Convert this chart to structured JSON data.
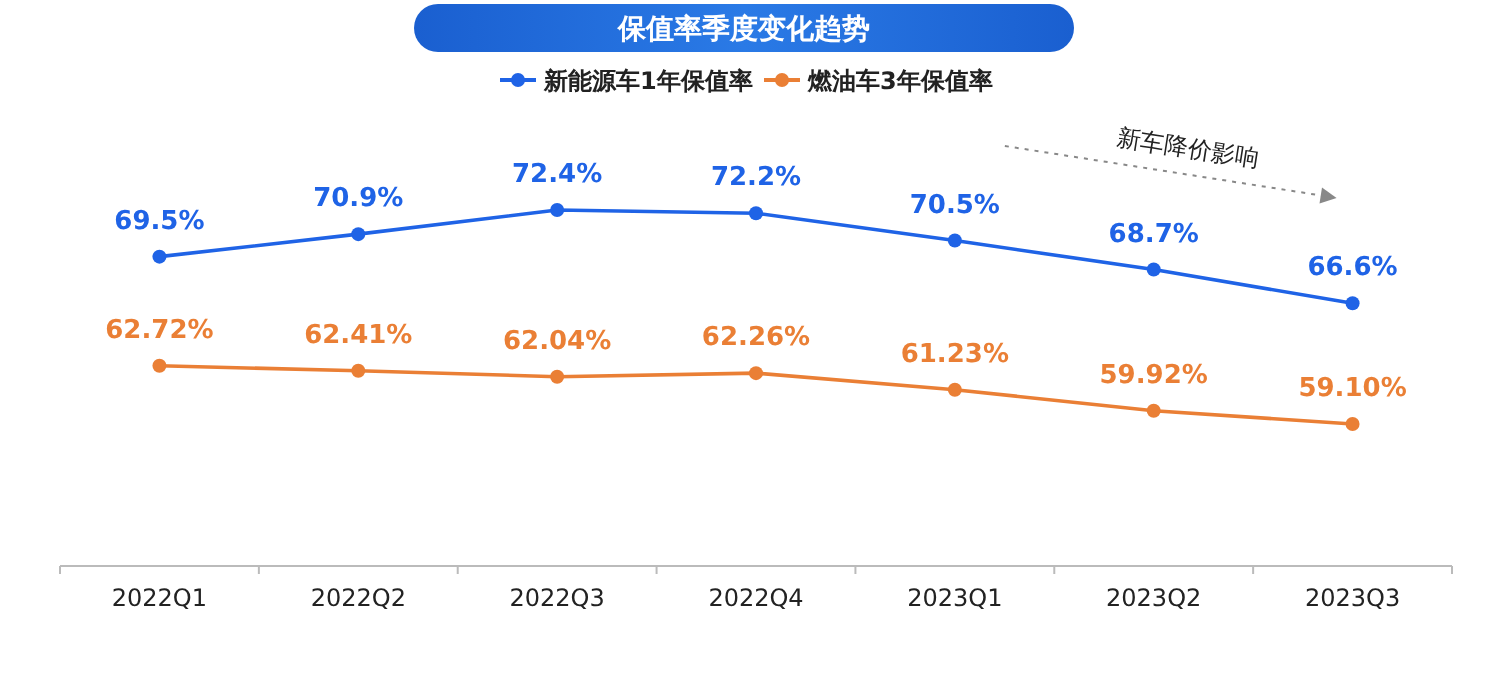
{
  "chart_data": {
    "type": "line",
    "title": "保值率季度变化趋势",
    "categories": [
      "2022Q1",
      "2022Q2",
      "2022Q3",
      "2022Q4",
      "2023Q1",
      "2023Q2",
      "2023Q3"
    ],
    "series": [
      {
        "name": "新能源车1年保值率",
        "color": "#1f63e6",
        "values": [
          69.5,
          70.9,
          72.4,
          72.2,
          70.5,
          68.7,
          66.6
        ],
        "value_labels": [
          "69.5%",
          "70.9%",
          "72.4%",
          "72.2%",
          "70.5%",
          "68.7%",
          "66.6%"
        ]
      },
      {
        "name": "燃油车3年保值率",
        "color": "#ea7f35",
        "values": [
          62.72,
          62.41,
          62.04,
          62.26,
          61.23,
          59.92,
          59.1
        ],
        "value_labels": [
          "62.72%",
          "62.41%",
          "62.04%",
          "62.26%",
          "61.23%",
          "59.92%",
          "59.10%"
        ]
      }
    ],
    "annotations": [
      "新车降价影响"
    ],
    "legend": "top",
    "marker": "circle",
    "line_style": "solid",
    "grid": false
  }
}
